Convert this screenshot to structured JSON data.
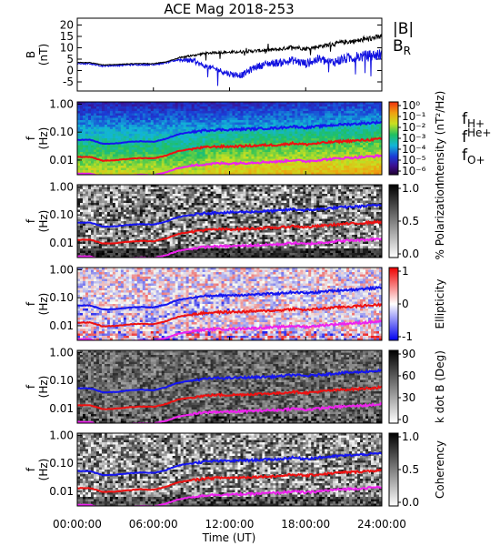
{
  "title": "ACE Mag 2018-253",
  "colors": {
    "B": "#000000",
    "BR": "#1010e0",
    "fH": "#1515f0",
    "fHe": "#ee1111",
    "fO": "#ee22ee"
  },
  "xaxis": {
    "label": "Time (UT)",
    "range": [
      0,
      24
    ],
    "ticks": [
      0,
      6,
      12,
      18,
      24
    ],
    "tick_labels": [
      "00:00:00",
      "06:00:00",
      "12:00:00",
      "18:00:00",
      "24:00:00"
    ]
  },
  "top_panel": {
    "ylabel_main": "B",
    "ylabel_unit": "(nT)",
    "ylim": [
      -9,
      23
    ],
    "ticks": [
      20,
      15,
      10,
      5,
      0,
      -5
    ],
    "tick_labels": [
      "20",
      "15",
      "10",
      "5",
      "0",
      "-5"
    ],
    "legend_B": "|B|",
    "legend_BR_main": "B",
    "legend_BR_sub": "R"
  },
  "freq_axis": {
    "ylabel_main": "f",
    "ylabel_unit": "(Hz)",
    "ticks": [
      1.0,
      0.1,
      0.01
    ],
    "tick_labels": [
      "1.00",
      "0.10",
      "0.01"
    ],
    "ylim": [
      0.003,
      1.2
    ],
    "scale": "log"
  },
  "cyclotron_legend": {
    "H_main": "f",
    "H_sub": "H+",
    "He_main": "f",
    "He_sub": "He+",
    "O_main": "f",
    "O_sub": "O+"
  },
  "panels": [
    {
      "id": "intensity",
      "colorbar_label": "Intensity (nT²/Hz)",
      "colorbar_ticks": [
        "10⁰",
        "10⁻¹",
        "10⁻²",
        "10⁻³",
        "10⁻⁴",
        "10⁻⁵",
        "10⁻⁶"
      ]
    },
    {
      "id": "polarization",
      "colorbar_label": "% Polarization",
      "colorbar_ticks": [
        "1.0",
        "0.5",
        "0.0"
      ]
    },
    {
      "id": "ellipticity",
      "colorbar_label": "Ellipticity",
      "colorbar_ticks": [
        "1",
        "0",
        "-1"
      ]
    },
    {
      "id": "kdotb",
      "colorbar_label": "k dot B (Deg)",
      "colorbar_ticks": [
        "90",
        "60",
        "30",
        "0"
      ]
    },
    {
      "id": "coherency",
      "colorbar_label": "Coherency",
      "colorbar_ticks": [
        "1.0",
        "0.5",
        "0.0"
      ]
    }
  ],
  "chart_data": {
    "type": "line",
    "title": "ACE Mag 2018-253",
    "xlabel": "Time (UT)",
    "x_units": "hours UT",
    "x": [
      0,
      1,
      2,
      3,
      4,
      5,
      6,
      7,
      8,
      9,
      10,
      11,
      12,
      13,
      14,
      15,
      16,
      17,
      18,
      19,
      20,
      21,
      22,
      23,
      24
    ],
    "magnetic_field": {
      "ylabel": "B (nT)",
      "ylim": [
        -9,
        23
      ],
      "series": [
        {
          "name": "|B|",
          "values": [
            3.5,
            3.5,
            2.5,
            2.6,
            2.9,
            3.1,
            3.0,
            3.8,
            5.5,
            6.5,
            7.5,
            8.0,
            8.0,
            8.3,
            8.6,
            9.0,
            9.3,
            10.5,
            9.5,
            10.5,
            11.5,
            12.5,
            13.0,
            14.0,
            15.0
          ]
        },
        {
          "name": "B_R",
          "values": [
            3.0,
            3.0,
            2.0,
            2.2,
            2.5,
            2.6,
            2.6,
            3.4,
            4.8,
            4.5,
            2.0,
            0.5,
            -1.5,
            -2.0,
            1.5,
            3.0,
            3.5,
            4.5,
            3.0,
            5.0,
            3.5,
            5.0,
            6.0,
            6.5,
            7.0
          ]
        }
      ]
    },
    "cyclotron_frequencies": {
      "ylabel": "f (Hz)",
      "scale": "log",
      "series": [
        {
          "name": "f_H+",
          "values": [
            0.053,
            0.053,
            0.038,
            0.039,
            0.044,
            0.047,
            0.045,
            0.057,
            0.084,
            0.1,
            0.114,
            0.122,
            0.122,
            0.127,
            0.131,
            0.137,
            0.142,
            0.16,
            0.145,
            0.16,
            0.175,
            0.19,
            0.198,
            0.213,
            0.228
          ]
        },
        {
          "name": "f_He+",
          "values": [
            0.013,
            0.013,
            0.0095,
            0.0098,
            0.011,
            0.0118,
            0.0114,
            0.0144,
            0.021,
            0.025,
            0.0285,
            0.0305,
            0.0305,
            0.0316,
            0.0327,
            0.0343,
            0.0354,
            0.04,
            0.0362,
            0.04,
            0.0438,
            0.0475,
            0.0495,
            0.0533,
            0.057
          ]
        },
        {
          "name": "f_O+",
          "values": [
            0.0033,
            0.0033,
            0.0024,
            0.0025,
            0.0028,
            0.003,
            0.0029,
            0.0036,
            0.0052,
            0.0062,
            0.0071,
            0.0076,
            0.0076,
            0.0079,
            0.0082,
            0.0086,
            0.0089,
            0.01,
            0.009,
            0.01,
            0.011,
            0.0119,
            0.0124,
            0.0133,
            0.0143
          ]
        }
      ]
    },
    "spectrogram_panels": [
      "Intensity (nT²/Hz)",
      "% Polarization",
      "Ellipticity",
      "k dot B (Deg)",
      "Coherency"
    ],
    "grid": false
  }
}
